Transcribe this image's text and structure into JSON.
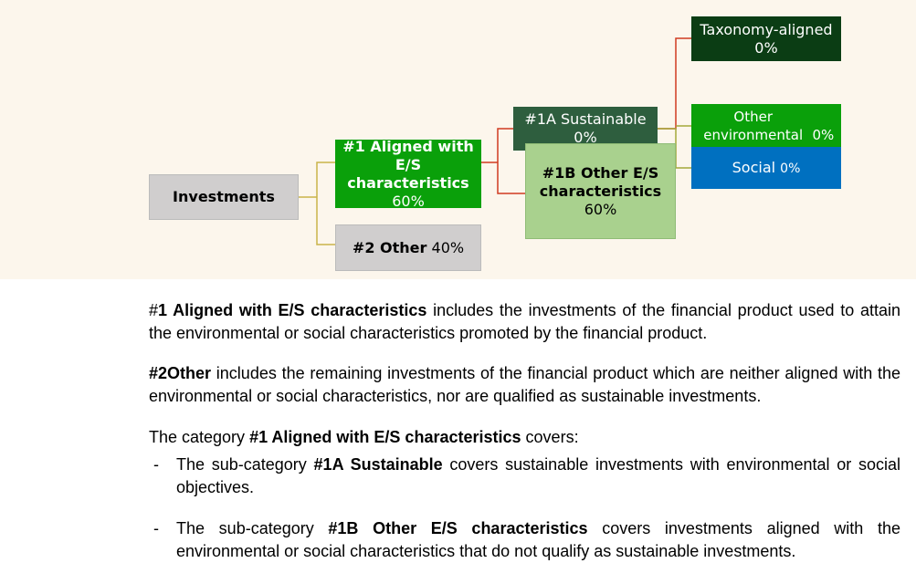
{
  "nodes": [
    {
      "label": "Investments"
    },
    {
      "label": "#1 Aligned with E/S characteristics",
      "value": "60%"
    },
    {
      "label": "#2 Other",
      "value": "40%"
    },
    {
      "label": "#1A Sustainable",
      "value": "0%"
    },
    {
      "label": "#1B Other E/S characteristics",
      "value": "60%"
    },
    {
      "label": "Taxonomy-aligned",
      "value": "0%"
    },
    {
      "label": "Other environmental",
      "value": "0%"
    },
    {
      "label": "Social",
      "value": "0%"
    }
  ],
  "paragraphs": [
    [
      "#",
      "1 Aligned with E/S characteristics",
      "includes the investments of the financial product used to attain the environmental or social characteristics promoted by the financial product."
    ],
    [
      "#2Other",
      "includes the remaining investments of the financial product which are neither aligned with the environmental or social characteristics, nor are qualified as sustainable investments."
    ],
    [
      "The category",
      "#1 Aligned with E/S characteristics",
      "covers:"
    ]
  ],
  "list": [
    {
      "bullet": "-",
      "parts": [
        "The sub-category",
        "#1A Sustainable",
        "covers sustainable investments with environmental or social objectives."
      ]
    },
    {
      "bullet": "-",
      "parts": [
        "The sub-category",
        "#1B Other E/S characteristics",
        "covers investments aligned with the environmental or social characteristics that do not qualify as sustainable investments."
      ]
    }
  ]
}
